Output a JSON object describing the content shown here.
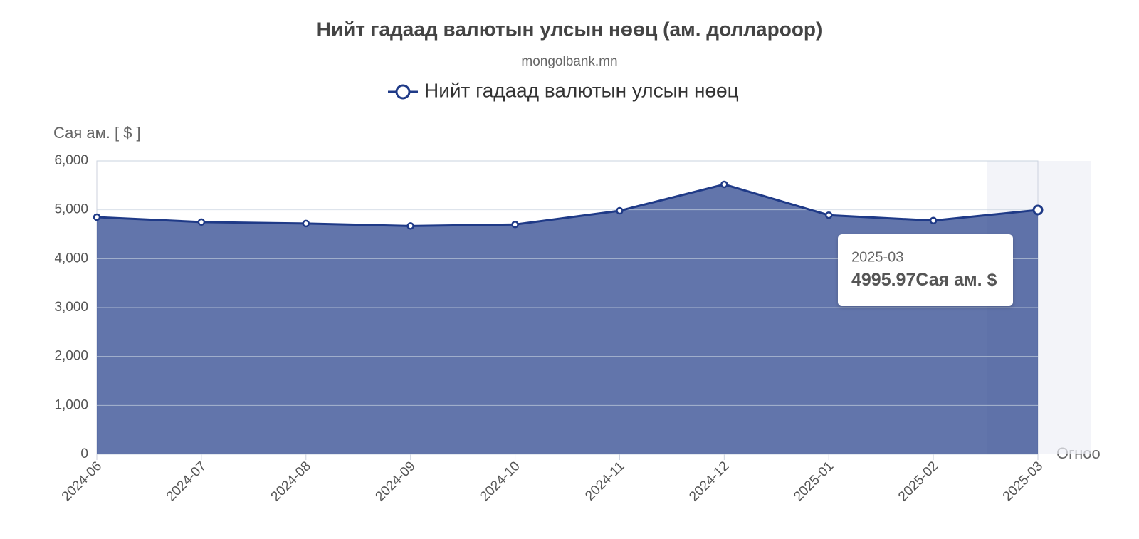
{
  "chart_data": {
    "type": "area",
    "title": "Нийт гадаад валютын улсын нөөц (ам. доллароор)",
    "subtitle": "mongolbank.mn",
    "y_axis_title": "Сая ам. [ $ ]",
    "x_axis_title": "Огноо",
    "categories": [
      "2024-06",
      "2024-07",
      "2024-08",
      "2024-09",
      "2024-10",
      "2024-11",
      "2024-12",
      "2025-01",
      "2025-02",
      "2025-03"
    ],
    "series": [
      {
        "name": "Нийт гадаад валютын улсын нөөц",
        "color": "#1f3a87",
        "values": [
          4850,
          4750,
          4720,
          4670,
          4700,
          4980,
          5520,
          4890,
          4780,
          4995.97
        ]
      }
    ],
    "ylim": [
      0,
      6000
    ],
    "yticks": [
      0,
      {
        "value": 1000,
        "label": "1,000"
      },
      {
        "value": 2000,
        "label": "2,000"
      },
      {
        "value": 3000,
        "label": "3,000"
      },
      {
        "value": 4000,
        "label": "4,000"
      },
      {
        "value": 5000,
        "label": "5,000"
      },
      {
        "value": 6000,
        "label": "6,000"
      }
    ],
    "grid": true,
    "legend": "top",
    "tooltip_unit": "Сая ам. $"
  }
}
